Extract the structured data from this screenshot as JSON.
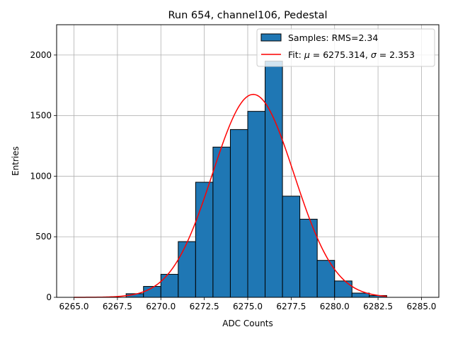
{
  "chart_data": {
    "type": "bar",
    "title": "Run 654, channel106, Pedestal",
    "xlabel": "ADC Counts",
    "ylabel": "Entries",
    "xlim": [
      6264.0,
      6286.0
    ],
    "ylim": [
      0,
      2250
    ],
    "xticks": [
      6265.0,
      6267.5,
      6270.0,
      6272.5,
      6275.0,
      6277.5,
      6280.0,
      6282.5,
      6285.0
    ],
    "xtick_labels": [
      "6265.0",
      "6267.5",
      "6270.0",
      "6272.5",
      "6275.0",
      "6277.5",
      "6280.0",
      "6282.5",
      "6285.0"
    ],
    "yticks": [
      0,
      500,
      1000,
      1500,
      2000
    ],
    "ytick_labels": [
      "0",
      "500",
      "1000",
      "1500",
      "2000"
    ],
    "grid": true,
    "legend_position": "top-right",
    "bin_width": 1,
    "bins": [
      {
        "x0": 6268,
        "value": 30
      },
      {
        "x0": 6269,
        "value": 90
      },
      {
        "x0": 6270,
        "value": 190
      },
      {
        "x0": 6271,
        "value": 460
      },
      {
        "x0": 6272,
        "value": 950
      },
      {
        "x0": 6273,
        "value": 1240
      },
      {
        "x0": 6274,
        "value": 1385
      },
      {
        "x0": 6275,
        "value": 1535
      },
      {
        "x0": 6276,
        "value": 1950
      },
      {
        "x0": 6277,
        "value": 835
      },
      {
        "x0": 6278,
        "value": 645
      },
      {
        "x0": 6279,
        "value": 305
      },
      {
        "x0": 6280,
        "value": 135
      },
      {
        "x0": 6281,
        "value": 35
      },
      {
        "x0": 6282,
        "value": 15
      }
    ],
    "fit": {
      "mu": 6275.314,
      "sigma": 2.353,
      "amplitude": 1675,
      "x_range": [
        6265.0,
        6283.0
      ]
    },
    "series": [
      {
        "name": "Samples: RMS=2.34",
        "kind": "histogram",
        "color": "#1f77b4"
      },
      {
        "name": "Fit: μ = 6275.314, σ = 2.353",
        "kind": "line",
        "color": "#ff0000"
      }
    ]
  },
  "legend": {
    "samples_label": "Samples: RMS=2.34",
    "fit_prefix": "Fit: ",
    "mu_symbol": "μ",
    "mu_value": " = 6275.314, ",
    "sigma_symbol": "σ",
    "sigma_value": " = 2.353"
  }
}
